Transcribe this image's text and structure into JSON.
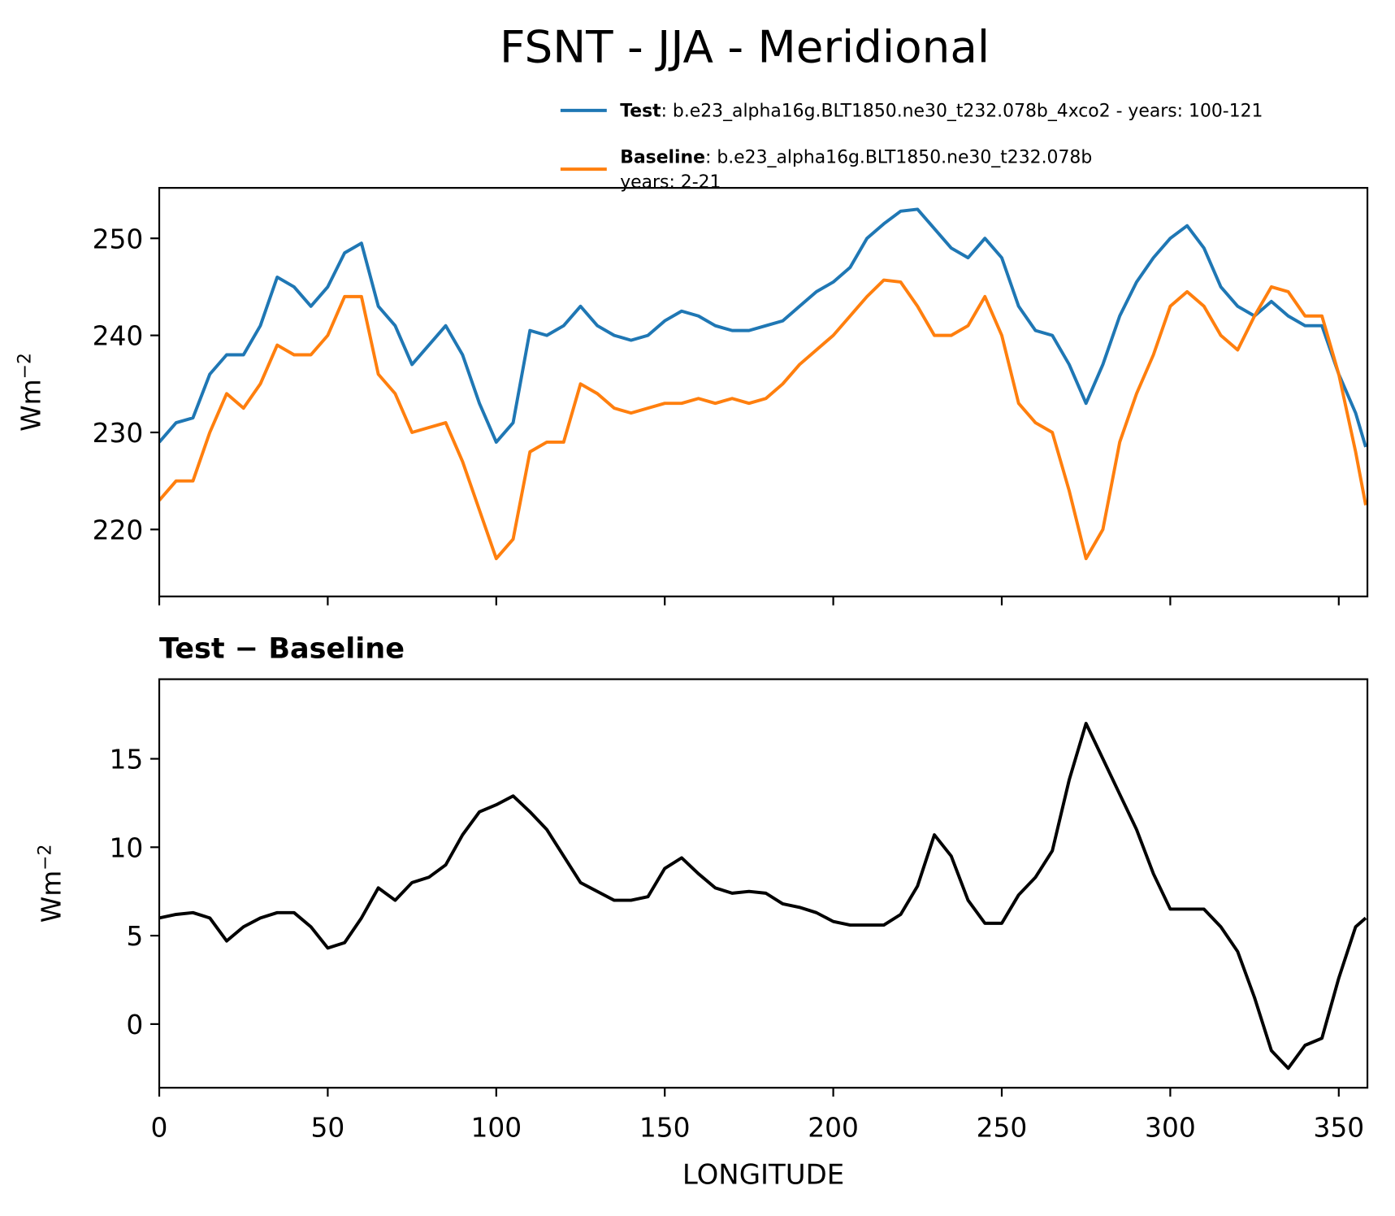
{
  "chart_data": [
    {
      "type": "line",
      "title": "FSNT - JJA - Meridional",
      "ylabel": "Wm",
      "ylabel_sup": "−2",
      "x": [
        0,
        5,
        10,
        15,
        20,
        25,
        30,
        35,
        40,
        45,
        50,
        55,
        60,
        65,
        70,
        75,
        80,
        85,
        90,
        95,
        100,
        105,
        110,
        115,
        120,
        125,
        130,
        135,
        140,
        145,
        150,
        155,
        160,
        165,
        170,
        175,
        180,
        185,
        190,
        195,
        200,
        205,
        210,
        215,
        220,
        225,
        230,
        235,
        240,
        245,
        250,
        255,
        260,
        265,
        270,
        275,
        280,
        285,
        290,
        295,
        300,
        305,
        310,
        315,
        320,
        325,
        330,
        335,
        340,
        345,
        350,
        355,
        358
      ],
      "series": [
        {
          "name": "Test",
          "description": [
            ": b.e23_alpha16g.BLT1850.ne30_t232.078b_4xco2 - years: 100-121"
          ],
          "color": "#1f77b4",
          "values": [
            229,
            231,
            231.5,
            236,
            238,
            238,
            241,
            246,
            245,
            243,
            245,
            248.5,
            249.5,
            243,
            241,
            237,
            239,
            241,
            238,
            233,
            229,
            231,
            240.5,
            240,
            241,
            243,
            241,
            240,
            239.5,
            240,
            241.5,
            242.5,
            242,
            241,
            240.5,
            240.5,
            241,
            241.5,
            243,
            244.5,
            245.5,
            247,
            250,
            251.5,
            252.8,
            253,
            251,
            249,
            248,
            250,
            248,
            243,
            240.5,
            240,
            237,
            233,
            237,
            242,
            245.5,
            248,
            250,
            251.3,
            249,
            245,
            243,
            242,
            243.5,
            242,
            241,
            241,
            236,
            232,
            228.5
          ]
        },
        {
          "name": "Baseline",
          "description": [
            ": b.e23_alpha16g.BLT1850.ne30_t232.078b",
            "years: 2-21"
          ],
          "color": "#ff7f0e",
          "values": [
            223,
            225,
            225,
            230,
            234,
            232.5,
            235,
            239,
            238,
            238,
            240,
            244,
            244,
            236,
            234,
            230,
            230.5,
            231,
            227,
            222,
            217,
            219,
            228,
            229,
            229,
            235,
            234,
            232.5,
            232,
            232.5,
            233,
            233,
            233.5,
            233,
            233.5,
            233,
            233.5,
            235,
            237,
            238.5,
            240,
            242,
            244,
            245.7,
            245.5,
            243,
            240,
            240,
            241,
            244,
            240,
            233,
            231,
            230,
            224,
            217,
            220,
            229,
            234,
            238,
            243,
            244.5,
            243,
            240,
            238.5,
            242,
            245,
            244.5,
            242,
            242,
            236,
            228,
            222.5
          ]
        }
      ],
      "xlim": [
        0,
        358.5
      ],
      "xticks": [
        0,
        50,
        100,
        150,
        200,
        250,
        300,
        350
      ],
      "show_xtick_labels": false,
      "ylim": [
        213.1,
        255.2
      ],
      "yticks": [
        220,
        230,
        240,
        250
      ]
    },
    {
      "type": "line",
      "title": "Test − Baseline",
      "ylabel": "Wm",
      "ylabel_sup": "−2",
      "xlabel": "LONGITUDE",
      "x": [
        0,
        5,
        10,
        15,
        20,
        25,
        30,
        35,
        40,
        45,
        50,
        55,
        60,
        65,
        70,
        75,
        80,
        85,
        90,
        95,
        100,
        105,
        110,
        115,
        120,
        125,
        130,
        135,
        140,
        145,
        150,
        155,
        160,
        165,
        170,
        175,
        180,
        185,
        190,
        195,
        200,
        205,
        210,
        215,
        220,
        225,
        230,
        235,
        240,
        245,
        250,
        255,
        260,
        265,
        270,
        275,
        280,
        285,
        290,
        295,
        300,
        305,
        310,
        315,
        320,
        325,
        330,
        335,
        340,
        345,
        350,
        355,
        358
      ],
      "series": [
        {
          "color": "#000000",
          "values": [
            6,
            6.2,
            6.3,
            6,
            4.7,
            5.5,
            6,
            6.3,
            6.3,
            5.5,
            4.3,
            4.6,
            6,
            7.7,
            7,
            8,
            8.3,
            9,
            10.7,
            12,
            12.4,
            12.9,
            12,
            11,
            9.5,
            8,
            7.5,
            7,
            7,
            7.2,
            8.8,
            9.4,
            8.5,
            7.7,
            7.4,
            7.5,
            7.4,
            6.8,
            6.6,
            6.3,
            5.8,
            5.6,
            5.6,
            5.6,
            6.2,
            7.8,
            10.7,
            9.5,
            7,
            5.7,
            5.7,
            7.3,
            8.3,
            9.8,
            13.8,
            17,
            15,
            13,
            11,
            8.5,
            6.5,
            6.5,
            6.5,
            5.5,
            4.1,
            1.5,
            -1.5,
            -2.5,
            -1.2,
            -0.8,
            2.6,
            5.5,
            6
          ]
        }
      ],
      "xlim": [
        0,
        358.5
      ],
      "xticks": [
        0,
        50,
        100,
        150,
        200,
        250,
        300,
        350
      ],
      "show_xtick_labels": true,
      "ylim": [
        -3.6,
        19.5
      ],
      "yticks": [
        0,
        5,
        10,
        15
      ]
    }
  ]
}
